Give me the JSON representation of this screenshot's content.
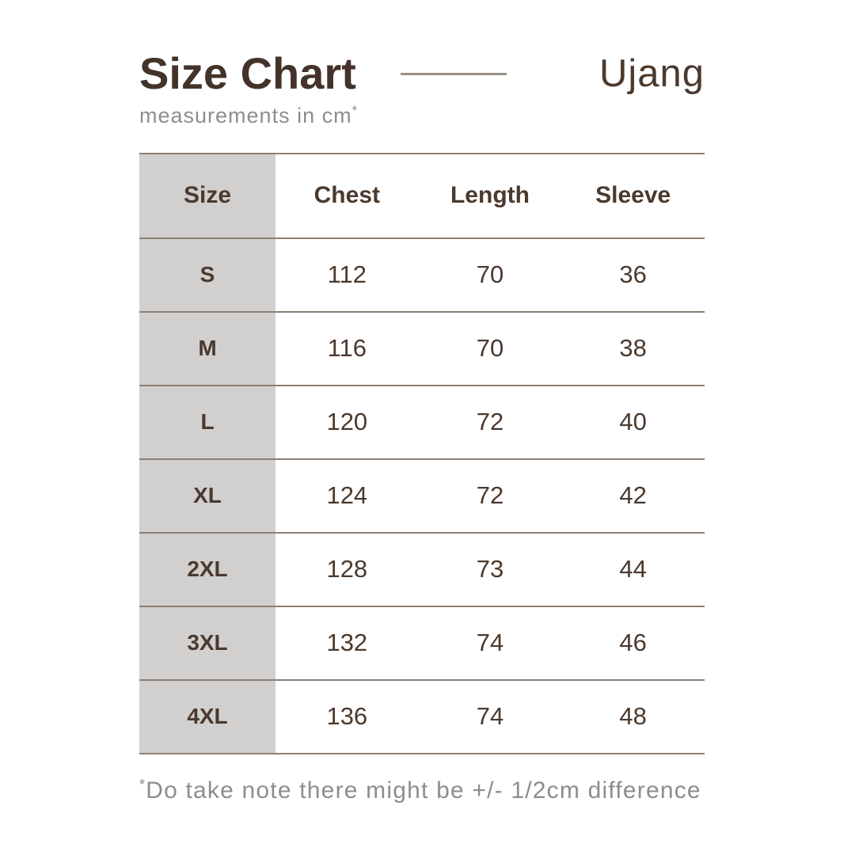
{
  "header": {
    "title": "Size Chart",
    "subtitle_text": "measurements in cm",
    "subtitle_mark": "*",
    "brand": "Ujang"
  },
  "table": {
    "columns": [
      "Size",
      "Chest",
      "Length",
      "Sleeve"
    ],
    "rows": [
      [
        "S",
        "112",
        "70",
        "36"
      ],
      [
        "M",
        "116",
        "70",
        "38"
      ],
      [
        "L",
        "120",
        "72",
        "40"
      ],
      [
        "XL",
        "124",
        "72",
        "42"
      ],
      [
        "2XL",
        "128",
        "73",
        "44"
      ],
      [
        "3XL",
        "132",
        "74",
        "46"
      ],
      [
        "4XL",
        "136",
        "74",
        "48"
      ]
    ]
  },
  "footnote": {
    "mark": "*",
    "text": "Do take note there might be  +/- 1/2cm difference"
  },
  "colors": {
    "title": "#44332a",
    "table_text": "#4a392e",
    "muted_text": "#908c89",
    "divider_line": "#8c7f73",
    "size_column_bg": "#d1d0cf",
    "background": "#ffffff"
  },
  "chart_data": {
    "type": "table",
    "title": "Size Chart",
    "brand": "Ujang",
    "unit": "cm",
    "columns": [
      "Size",
      "Chest",
      "Length",
      "Sleeve"
    ],
    "rows": [
      [
        "S",
        112,
        70,
        36
      ],
      [
        "M",
        116,
        70,
        38
      ],
      [
        "L",
        120,
        72,
        40
      ],
      [
        "XL",
        124,
        72,
        42
      ],
      [
        "2XL",
        128,
        73,
        44
      ],
      [
        "3XL",
        132,
        74,
        46
      ],
      [
        "4XL",
        136,
        74,
        48
      ]
    ],
    "note": "*Do take note there might be +/- 1/2cm difference"
  }
}
